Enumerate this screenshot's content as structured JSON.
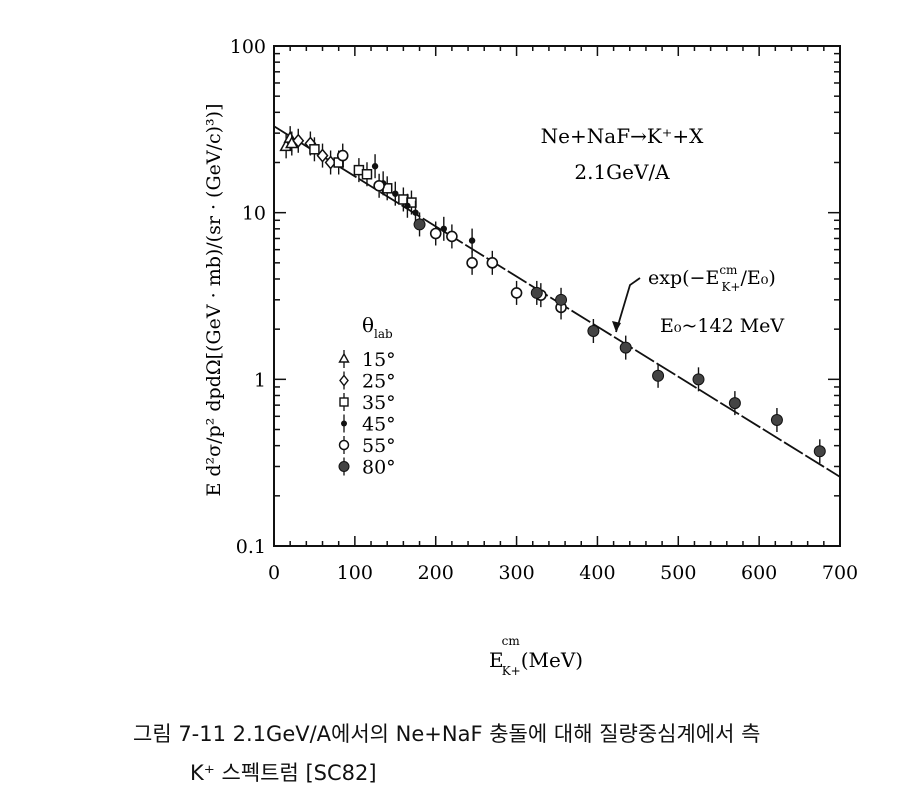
{
  "chart_data": {
    "type": "scatter",
    "ylabel": "E d²σ/p² dpdΩ[(GeV · mb)/(sr · (GeV/c)³)]",
    "xlabel": {
      "main": "E",
      "sup": "cm",
      "sub": "K+",
      "unit": "(MeV)"
    },
    "xlim": [
      0,
      700
    ],
    "ylim": [
      0.1,
      100
    ],
    "yscale": "log",
    "xticks": [
      "0",
      "100",
      "200",
      "300",
      "400",
      "500",
      "600",
      "700"
    ],
    "yticks": [
      "0.1",
      "1",
      "10",
      "100"
    ],
    "annotations": {
      "reaction": "Ne+NaF→K⁺+X",
      "energy": "2.1GeV/A",
      "fit_formula": "exp(−E",
      "fit_sup": "cm",
      "fit_sub": "K+",
      "fit_tail": "/E₀)",
      "e0": "E₀~142 MeV"
    },
    "legend_title": {
      "main": "θ",
      "sub": "lab"
    },
    "fit_line": {
      "x": [
        0,
        700
      ],
      "y": [
        33.0,
        0.26
      ]
    },
    "series": [
      {
        "name": "15°",
        "marker": "triangle-open",
        "points": [
          [
            15,
            25
          ],
          [
            20,
            28
          ],
          [
            22,
            26
          ]
        ]
      },
      {
        "name": "25°",
        "marker": "diamond-open",
        "points": [
          [
            30,
            27
          ],
          [
            45,
            26
          ],
          [
            60,
            22
          ],
          [
            70,
            20
          ]
        ]
      },
      {
        "name": "35°",
        "marker": "square-open",
        "points": [
          [
            50,
            24
          ],
          [
            80,
            20
          ],
          [
            105,
            18
          ],
          [
            115,
            17
          ],
          [
            140,
            14
          ],
          [
            160,
            12
          ],
          [
            170,
            11.5
          ]
        ]
      },
      {
        "name": "45°",
        "marker": "dot-small",
        "points": [
          [
            125,
            19
          ],
          [
            135,
            15
          ],
          [
            150,
            13
          ],
          [
            165,
            11
          ],
          [
            175,
            10
          ],
          [
            210,
            8
          ],
          [
            245,
            6.8
          ]
        ]
      },
      {
        "name": "55°",
        "marker": "circle-open",
        "points": [
          [
            85,
            22
          ],
          [
            130,
            14.5
          ],
          [
            200,
            7.5
          ],
          [
            220,
            7.2
          ],
          [
            245,
            5
          ],
          [
            270,
            5
          ],
          [
            300,
            3.3
          ],
          [
            330,
            3.2
          ],
          [
            355,
            2.7
          ]
        ]
      },
      {
        "name": "80°",
        "marker": "circle-filled",
        "points": [
          [
            180,
            8.5
          ],
          [
            325,
            3.3
          ],
          [
            355,
            3.0
          ],
          [
            395,
            1.95
          ],
          [
            435,
            1.55
          ],
          [
            475,
            1.05
          ],
          [
            525,
            1.0
          ],
          [
            570,
            0.72
          ],
          [
            622,
            0.57
          ],
          [
            675,
            0.37
          ]
        ]
      }
    ]
  },
  "caption": {
    "line1": "그림 7-11 2.1GeV/A에서의 Ne+NaF 충돌에 대해 질량중심계에서 측",
    "line2": "K⁺ 스펙트럼 [SC82]"
  }
}
